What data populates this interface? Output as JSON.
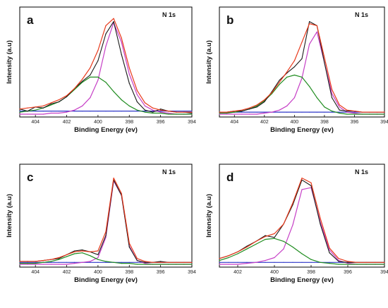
{
  "chart_data": [
    {
      "panel_label": "a",
      "type": "line",
      "annotation": "N 1s",
      "xlabel": "Binding Energy (ev)",
      "ylabel": "Intensity (a.u)",
      "xlim": [
        405,
        394
      ],
      "ylim": [
        0,
        1
      ],
      "x_ticks": [
        404,
        402,
        400,
        398,
        396,
        394
      ],
      "x": [
        405,
        404.5,
        404,
        403.5,
        403,
        402.5,
        402,
        401.5,
        401,
        400.5,
        400,
        399.5,
        399,
        398.5,
        398,
        397.5,
        397,
        396.5,
        396,
        395.5,
        395,
        394.5,
        394
      ],
      "series": [
        {
          "color": "#1a1a1a",
          "role": "raw",
          "values": [
            0.05,
            0.03,
            0.07,
            0.06,
            0.1,
            0.12,
            0.17,
            0.25,
            0.32,
            0.38,
            0.52,
            0.78,
            0.9,
            0.58,
            0.3,
            0.12,
            0.04,
            0.02,
            0.05,
            0.03,
            0.02,
            0.02,
            0.01
          ]
        },
        {
          "color": "#e8391b",
          "role": "fit",
          "values": [
            0.05,
            0.06,
            0.07,
            0.08,
            0.11,
            0.14,
            0.18,
            0.25,
            0.34,
            0.45,
            0.62,
            0.86,
            0.93,
            0.74,
            0.45,
            0.23,
            0.11,
            0.06,
            0.04,
            0.03,
            0.02,
            0.02,
            0.02
          ]
        },
        {
          "color": "#c63fc6",
          "role": "component",
          "values": [
            0,
            0,
            0,
            0,
            0.01,
            0.01,
            0.02,
            0.04,
            0.08,
            0.16,
            0.33,
            0.66,
            0.89,
            0.7,
            0.39,
            0.19,
            0.08,
            0.04,
            0.02,
            0.01,
            0,
            0,
            0
          ]
        },
        {
          "color": "#1f8c1f",
          "role": "component",
          "values": [
            0.02,
            0.03,
            0.04,
            0.06,
            0.09,
            0.12,
            0.17,
            0.24,
            0.31,
            0.36,
            0.36,
            0.31,
            0.22,
            0.14,
            0.08,
            0.04,
            0.02,
            0.01,
            0.01,
            0,
            0,
            0,
            0
          ]
        },
        {
          "color": "#2e37c8",
          "role": "baseline",
          "values": [
            0.03,
            0.03,
            0.03,
            0.03,
            0.03,
            0.03,
            0.03,
            0.03,
            0.03,
            0.03,
            0.03,
            0.03,
            0.03,
            0.03,
            0.03,
            0.03,
            0.03,
            0.03,
            0.03,
            0.03,
            0.03,
            0.03,
            0.03
          ]
        }
      ]
    },
    {
      "panel_label": "b",
      "type": "line",
      "annotation": "N 1s",
      "xlabel": "Binding Energy (ev)",
      "ylabel": "Intensity (a.u)",
      "xlim": [
        405,
        394
      ],
      "ylim": [
        0,
        1
      ],
      "x_ticks": [
        404,
        402,
        400,
        398,
        396,
        394
      ],
      "x": [
        405,
        404.5,
        404,
        403.5,
        403,
        402.5,
        402,
        401.5,
        401,
        400.5,
        400,
        399.5,
        399,
        398.5,
        398,
        397.5,
        397,
        396.5,
        396,
        395.5,
        395,
        394.5,
        394
      ],
      "series": [
        {
          "color": "#1a1a1a",
          "role": "raw",
          "values": [
            0.02,
            0.02,
            0.03,
            0.03,
            0.05,
            0.07,
            0.12,
            0.22,
            0.33,
            0.4,
            0.46,
            0.54,
            0.9,
            0.86,
            0.5,
            0.16,
            0.04,
            0.03,
            0.03,
            0.02,
            0.02,
            0.02,
            0.02
          ]
        },
        {
          "color": "#e8391b",
          "role": "fit",
          "values": [
            0.02,
            0.02,
            0.03,
            0.04,
            0.06,
            0.09,
            0.14,
            0.21,
            0.31,
            0.41,
            0.52,
            0.7,
            0.88,
            0.86,
            0.55,
            0.24,
            0.09,
            0.04,
            0.03,
            0.02,
            0.02,
            0.02,
            0.02
          ]
        },
        {
          "color": "#c63fc6",
          "role": "component",
          "values": [
            0,
            0,
            0,
            0,
            0,
            0,
            0.01,
            0.02,
            0.04,
            0.08,
            0.16,
            0.35,
            0.68,
            0.8,
            0.5,
            0.2,
            0.07,
            0.02,
            0.01,
            0,
            0,
            0,
            0
          ]
        },
        {
          "color": "#1f8c1f",
          "role": "component",
          "values": [
            0.01,
            0.01,
            0.02,
            0.03,
            0.05,
            0.08,
            0.13,
            0.2,
            0.29,
            0.36,
            0.38,
            0.36,
            0.27,
            0.16,
            0.07,
            0.03,
            0.01,
            0,
            0,
            0,
            0,
            0,
            0
          ]
        },
        {
          "color": "#2e37c8",
          "role": "baseline",
          "values": [
            0.02,
            0.02,
            0.02,
            0.02,
            0.02,
            0.02,
            0.02,
            0.02,
            0.02,
            0.02,
            0.02,
            0.02,
            0.02,
            0.02,
            0.02,
            0.02,
            0.02,
            0.02,
            0.02,
            0.02,
            0.02,
            0.02,
            0.02
          ]
        }
      ]
    },
    {
      "panel_label": "c",
      "type": "line",
      "annotation": "N 1s",
      "xlabel": "Binding Energy (ev)",
      "ylabel": "Intensity (a.u)",
      "xlim": [
        405,
        394
      ],
      "ylim": [
        0,
        1
      ],
      "x_ticks": [
        404,
        402,
        400,
        398,
        396,
        394
      ],
      "x": [
        405,
        404.5,
        404,
        403.5,
        403,
        402.5,
        402,
        401.5,
        401,
        400.5,
        400,
        399.5,
        399,
        398.5,
        398,
        397.5,
        397,
        396.5,
        396,
        395.5,
        395,
        394.5,
        394
      ],
      "series": [
        {
          "color": "#1a1a1a",
          "role": "raw",
          "values": [
            0.03,
            0.03,
            0.03,
            0.04,
            0.05,
            0.06,
            0.1,
            0.14,
            0.15,
            0.13,
            0.1,
            0.3,
            0.88,
            0.72,
            0.18,
            0.04,
            0.02,
            0.02,
            0.03,
            0.02,
            0.02,
            0.02,
            0.02
          ]
        },
        {
          "color": "#e8391b",
          "role": "fit",
          "values": [
            0.03,
            0.03,
            0.03,
            0.04,
            0.05,
            0.07,
            0.1,
            0.13,
            0.14,
            0.13,
            0.14,
            0.34,
            0.9,
            0.74,
            0.22,
            0.06,
            0.03,
            0.02,
            0.02,
            0.02,
            0.02,
            0.02,
            0.02
          ]
        },
        {
          "color": "#c63fc6",
          "role": "component",
          "values": [
            0,
            0,
            0,
            0,
            0,
            0,
            0,
            0.01,
            0.02,
            0.03,
            0.07,
            0.28,
            0.87,
            0.72,
            0.19,
            0.04,
            0.01,
            0,
            0,
            0,
            0,
            0,
            0
          ]
        },
        {
          "color": "#1f8c1f",
          "role": "component",
          "values": [
            0.01,
            0.01,
            0.01,
            0.02,
            0.03,
            0.05,
            0.08,
            0.11,
            0.12,
            0.09,
            0.05,
            0.03,
            0.02,
            0.01,
            0.01,
            0,
            0,
            0,
            0,
            0,
            0,
            0,
            0
          ]
        },
        {
          "color": "#2e37c8",
          "role": "baseline",
          "values": [
            0.02,
            0.02,
            0.02,
            0.02,
            0.02,
            0.02,
            0.02,
            0.02,
            0.02,
            0.02,
            0.02,
            0.02,
            0.02,
            0.02,
            0.02,
            0.02,
            0.02,
            0.02,
            0.02,
            0.02,
            0.02,
            0.02,
            0.02
          ]
        }
      ]
    },
    {
      "panel_label": "d",
      "type": "line",
      "annotation": "N 1s",
      "xlabel": "Binding Energy (ev)",
      "ylabel": "Intensity (a.u)",
      "xlim": [
        403,
        394
      ],
      "ylim": [
        0,
        1
      ],
      "x_ticks": [
        402,
        400,
        398,
        396,
        394
      ],
      "x": [
        403,
        402.5,
        402,
        401.5,
        401,
        400.5,
        400,
        399.5,
        399,
        398.5,
        398,
        397.5,
        397,
        396.5,
        396,
        395.5,
        395,
        394.5,
        394
      ],
      "series": [
        {
          "color": "#1a1a1a",
          "role": "raw",
          "values": [
            0.06,
            0.09,
            0.13,
            0.19,
            0.24,
            0.3,
            0.28,
            0.42,
            0.62,
            0.88,
            0.82,
            0.42,
            0.12,
            0.03,
            0.02,
            0.02,
            0.02,
            0.02,
            0.02
          ]
        },
        {
          "color": "#e8391b",
          "role": "fit",
          "values": [
            0.06,
            0.09,
            0.13,
            0.18,
            0.24,
            0.29,
            0.32,
            0.42,
            0.64,
            0.9,
            0.85,
            0.48,
            0.17,
            0.06,
            0.03,
            0.02,
            0.02,
            0.02,
            0.02
          ]
        },
        {
          "color": "#c63fc6",
          "role": "component",
          "values": [
            0,
            0,
            0,
            0.01,
            0.02,
            0.04,
            0.07,
            0.16,
            0.41,
            0.78,
            0.8,
            0.44,
            0.15,
            0.04,
            0.01,
            0,
            0,
            0,
            0
          ]
        },
        {
          "color": "#1f8c1f",
          "role": "component",
          "values": [
            0.04,
            0.07,
            0.11,
            0.16,
            0.21,
            0.26,
            0.27,
            0.24,
            0.18,
            0.11,
            0.05,
            0.02,
            0.01,
            0,
            0,
            0,
            0,
            0,
            0
          ]
        },
        {
          "color": "#2e37c8",
          "role": "baseline",
          "values": [
            0.02,
            0.02,
            0.02,
            0.02,
            0.02,
            0.02,
            0.02,
            0.02,
            0.02,
            0.02,
            0.02,
            0.02,
            0.02,
            0.02,
            0.02,
            0.02,
            0.02,
            0.02,
            0.02
          ]
        }
      ]
    }
  ]
}
